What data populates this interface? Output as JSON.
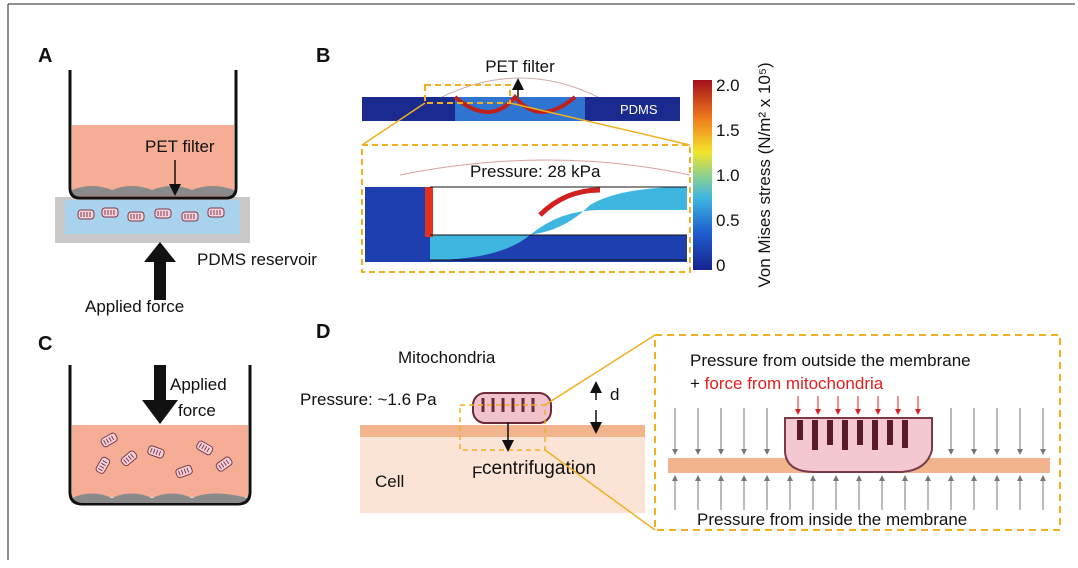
{
  "panels": {
    "a": {
      "label": "A",
      "filter": "PET filter",
      "reservoir": "PDMS reservoir",
      "force": "Applied force"
    },
    "b": {
      "label": "B",
      "filter": "PET filter",
      "pdms": "PDMS",
      "pressure": "Pressure: 28 kPa",
      "colorbar": {
        "title": "Von Mises stress (N/m² x 10⁵)",
        "ticks": [
          "2.0",
          "1.5",
          "1.0",
          "0.5",
          "0"
        ]
      }
    },
    "c": {
      "label": "C",
      "force_line1": "Applied",
      "force_line2": "force"
    },
    "d": {
      "label": "D",
      "mitochondria": "Mitochondria",
      "pressure": "Pressure: ~1.6 Pa",
      "distance": "d",
      "force": "F",
      "force_sub": "centrifugation",
      "cell": "Cell",
      "outside": "Pressure from outside the membrane",
      "plus": "+",
      "mito_force": "force from mitochondria",
      "inside": "Pressure from inside the membrane"
    }
  }
}
